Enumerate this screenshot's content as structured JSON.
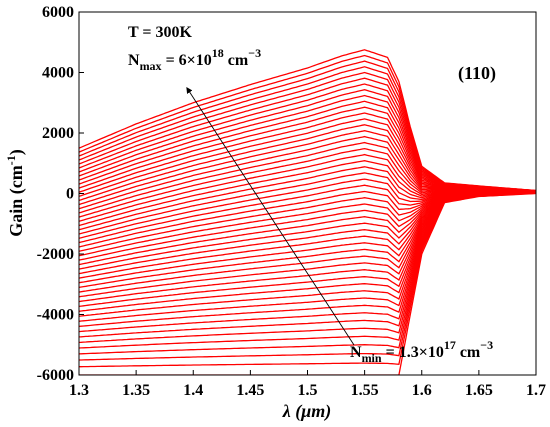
{
  "chart_data": {
    "type": "line",
    "xlabel_symbol": "λ",
    "xlabel_unit": "(μm)",
    "ylabel": "Gain (cm",
    "ylabel_exp": "-1",
    "ylabel_close": ")",
    "xlim": [
      1.3,
      1.7
    ],
    "ylim": [
      -6000,
      6000
    ],
    "xticks": [
      1.3,
      1.35,
      1.4,
      1.45,
      1.5,
      1.55,
      1.6,
      1.65,
      1.7
    ],
    "xtick_labels": [
      "1.3",
      "1.35",
      "1.4",
      "1.45",
      "1.5",
      "1.55",
      "1.6",
      "1.65",
      "1.7"
    ],
    "yticks": [
      -6000,
      -4000,
      -2000,
      0,
      2000,
      4000,
      6000
    ],
    "ytick_labels": [
      "-6000",
      "-4000",
      "-2000",
      "0",
      "2000",
      "4000",
      "6000"
    ],
    "grid": false,
    "line_color": "#ff0000",
    "curve_count": 50,
    "carrier_density_range_cm3": [
      1.3e+17,
      6e+18
    ],
    "top_curve": {
      "x": [
        1.3,
        1.35,
        1.4,
        1.45,
        1.5,
        1.53,
        1.55,
        1.57,
        1.58,
        1.59,
        1.6,
        1.62,
        1.65,
        1.7
      ],
      "y": [
        1500,
        2300,
        3000,
        3600,
        4150,
        4550,
        4750,
        4500,
        3700,
        2200,
        900,
        350,
        250,
        100
      ]
    },
    "bottom_curve": {
      "x": [
        1.3,
        1.4,
        1.5,
        1.55,
        1.58,
        1.6,
        1.62,
        1.65,
        1.7
      ],
      "y": [
        -6000,
        -6000,
        -6000,
        -6000,
        -6000,
        -2000,
        -300,
        -100,
        0
      ]
    }
  },
  "annotations": {
    "temperature": "T = 300K",
    "nmax_prefix": "N",
    "nmax_sub": "max",
    "nmax_value": " = 6×10",
    "nmax_exp": "18",
    "nmax_unit": " cm",
    "nmax_unit_exp": "−3",
    "nmin_prefix": "N",
    "nmin_sub": "min",
    "nmin_value": " = 1.3×10",
    "nmin_exp": "17",
    "nmin_unit": " cm",
    "nmin_unit_exp": "−3",
    "panel_label": "(110)"
  }
}
